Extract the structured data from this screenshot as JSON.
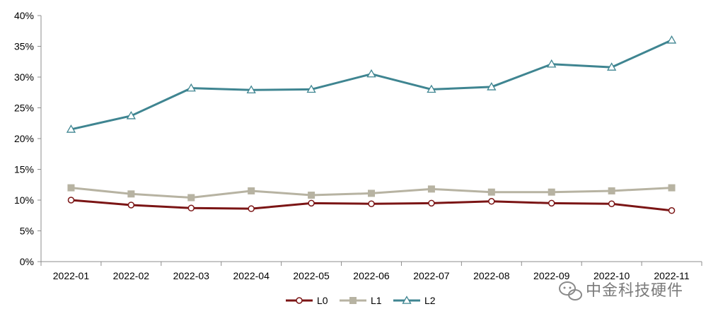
{
  "chart_data": {
    "type": "line",
    "title": "",
    "xlabel": "",
    "ylabel": "",
    "categories": [
      "2022-01",
      "2022-02",
      "2022-03",
      "2022-04",
      "2022-05",
      "2022-06",
      "2022-07",
      "2022-08",
      "2022-09",
      "2022-10",
      "2022-11"
    ],
    "ylim": [
      0,
      40
    ],
    "yticks": [
      0,
      5,
      10,
      15,
      20,
      25,
      30,
      35,
      40
    ],
    "ytick_labels": [
      "0%",
      "5%",
      "10%",
      "15%",
      "20%",
      "25%",
      "30%",
      "35%",
      "40%"
    ],
    "grid": false,
    "legend_position": "bottom",
    "series": [
      {
        "name": "L0",
        "color": "#7b1515",
        "marker": "circle",
        "values": [
          10.0,
          9.2,
          8.7,
          8.6,
          9.5,
          9.4,
          9.5,
          9.8,
          9.5,
          9.4,
          8.3
        ]
      },
      {
        "name": "L1",
        "color": "#b7b3a2",
        "marker": "square",
        "values": [
          12.0,
          11.0,
          10.4,
          11.5,
          10.8,
          11.1,
          11.8,
          11.3,
          11.3,
          11.5,
          12.0
        ]
      },
      {
        "name": "L2",
        "color": "#3f8591",
        "marker": "triangle",
        "values": [
          21.5,
          23.7,
          28.2,
          27.9,
          28.0,
          30.5,
          28.0,
          28.4,
          32.1,
          31.6,
          36.0
        ]
      }
    ]
  },
  "watermark": {
    "text": "中金科技硬件",
    "icon": "wechat-icon"
  }
}
